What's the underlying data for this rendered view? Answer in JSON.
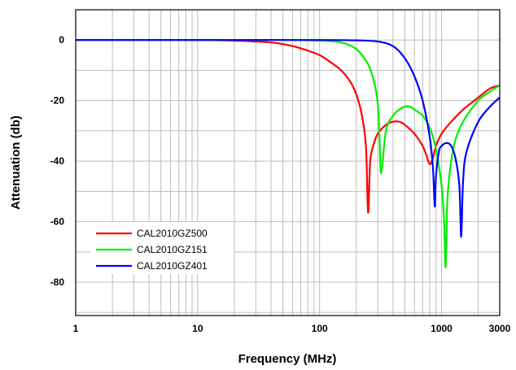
{
  "chart_data": {
    "type": "line",
    "title": "",
    "xlabel": "Frequency (MHz)",
    "ylabel": "Attenuation (db)",
    "x_scale": "log",
    "xlim": [
      1,
      3000
    ],
    "ylim": [
      -91,
      10
    ],
    "x_ticks": [
      1,
      10,
      100,
      1000,
      3000
    ],
    "x_tick_labels": [
      "1",
      "10",
      "100",
      "1000",
      "3000"
    ],
    "y_ticks": [
      0,
      -20,
      -40,
      -60,
      -80
    ],
    "y_tick_labels": [
      "0",
      "-20",
      "-40",
      "-60",
      "-80"
    ],
    "grid": true,
    "legend_position": "bottom-left",
    "series": [
      {
        "name": "CAL2010GZ500",
        "color": "#ff0000",
        "x": [
          1,
          10,
          20,
          40,
          60,
          80,
          100,
          120,
          150,
          180,
          200,
          220,
          240,
          250,
          260,
          280,
          300,
          350,
          400,
          450,
          500,
          600,
          700,
          750,
          800,
          850,
          900,
          1000,
          1200,
          1500,
          2000,
          2500,
          3000
        ],
        "y": [
          0,
          0,
          -0.2,
          -0.8,
          -2,
          -3.5,
          -5,
          -7,
          -10,
          -14,
          -18,
          -24,
          -35,
          -57,
          -40,
          -34,
          -31,
          -28,
          -27,
          -27,
          -28,
          -31,
          -35,
          -38,
          -41,
          -39,
          -35,
          -31,
          -27,
          -23,
          -19,
          -16,
          -15
        ]
      },
      {
        "name": "CAL2010GZ151",
        "color": "#00ee00",
        "x": [
          1,
          10,
          50,
          100,
          150,
          200,
          250,
          280,
          300,
          310,
          320,
          350,
          400,
          450,
          500,
          550,
          600,
          700,
          800,
          900,
          1000,
          1050,
          1080,
          1120,
          1200,
          1300,
          1500,
          2000,
          2500,
          3000
        ],
        "y": [
          0,
          0,
          0,
          -0.2,
          -0.8,
          -3,
          -8,
          -14,
          -21,
          -32,
          -44,
          -30,
          -25,
          -23,
          -22,
          -22,
          -23,
          -25,
          -29,
          -36,
          -48,
          -60,
          -75,
          -52,
          -40,
          -33,
          -27,
          -20,
          -17,
          -15
        ]
      },
      {
        "name": "CAL2010GZ401",
        "color": "#0000ff",
        "x": [
          1,
          10,
          100,
          200,
          300,
          400,
          500,
          600,
          700,
          800,
          850,
          880,
          900,
          950,
          1000,
          1100,
          1200,
          1300,
          1400,
          1450,
          1500,
          1600,
          2000,
          2500,
          3000
        ],
        "y": [
          0,
          0,
          0,
          -0.1,
          -0.5,
          -2,
          -6,
          -12,
          -20,
          -32,
          -42,
          -55,
          -45,
          -37,
          -35,
          -34,
          -35,
          -39,
          -48,
          -65,
          -47,
          -37,
          -27,
          -22,
          -19
        ]
      }
    ]
  }
}
